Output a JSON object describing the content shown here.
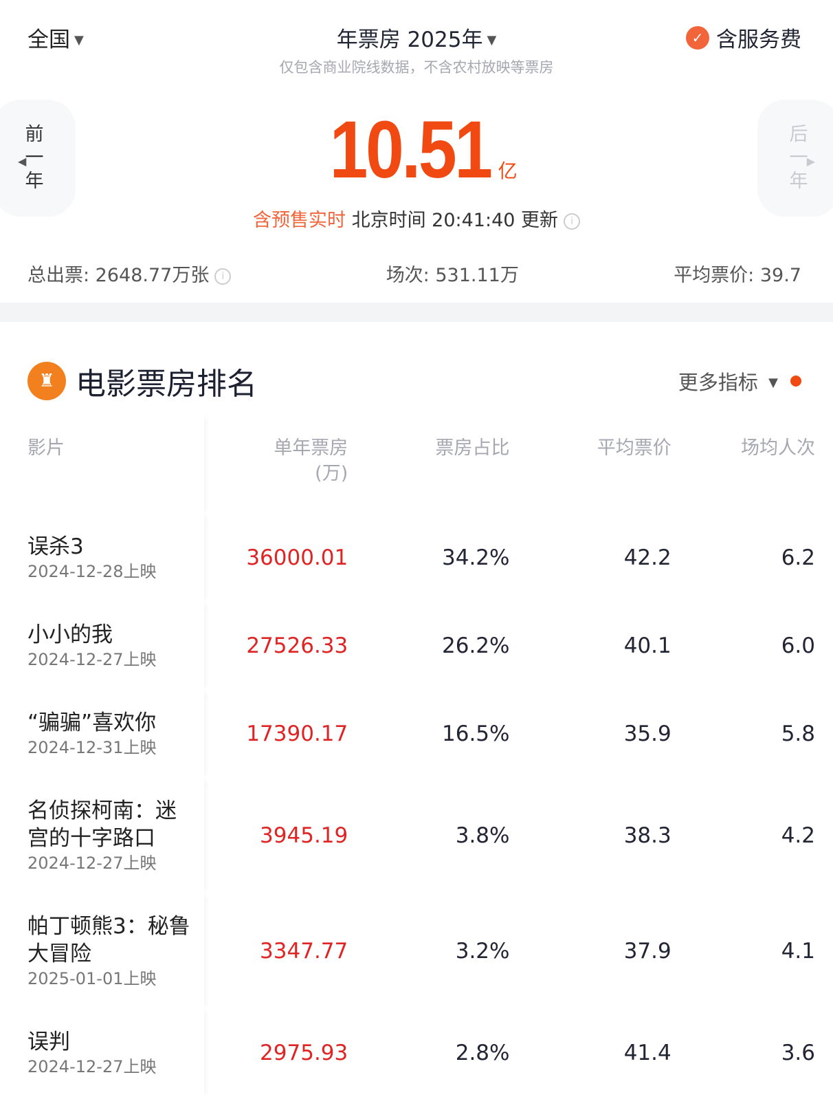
{
  "header": {
    "region": "全国",
    "title": "年票房 2025年",
    "subtitle": "仅包含商业院线数据，不含农村放映等票房",
    "service_fee": "含服务费"
  },
  "nav": {
    "prev": [
      "前",
      "一",
      "年"
    ],
    "next": [
      "后",
      "一",
      "年"
    ]
  },
  "summary": {
    "value": "10.51",
    "unit": "亿",
    "presale": "含预售实时",
    "update": "北京时间 20:41:40 更新"
  },
  "stats": {
    "tickets": "总出票: 2648.77万张",
    "shows": "场次: 531.11万",
    "avg_price": "平均票价: 39.7"
  },
  "section": {
    "title": "电影票房排名",
    "more": "更多指标"
  },
  "table": {
    "headers": [
      "影片",
      "单年票房",
      "(万)",
      "票房占比",
      "平均票价",
      "场均人次"
    ],
    "rows": [
      {
        "name": "误杀3",
        "date": "2024-12-28上映",
        "bo": "36000.01",
        "share": "34.2%",
        "price": "42.2",
        "avg": "6.2"
      },
      {
        "name": "小小的我",
        "date": "2024-12-27上映",
        "bo": "27526.33",
        "share": "26.2%",
        "price": "40.1",
        "avg": "6.0"
      },
      {
        "name": "“骗骗”喜欢你",
        "date": "2024-12-31上映",
        "bo": "17390.17",
        "share": "16.5%",
        "price": "35.9",
        "avg": "5.8"
      },
      {
        "name": "名侦探柯南：迷宫的十字路口",
        "date": "2024-12-27上映",
        "bo": "3945.19",
        "share": "3.8%",
        "price": "38.3",
        "avg": "4.2"
      },
      {
        "name": "帕丁顿熊3：秘鲁大冒险",
        "date": "2025-01-01上映",
        "bo": "3347.77",
        "share": "3.2%",
        "price": "37.9",
        "avg": "4.1"
      },
      {
        "name": "误判",
        "date": "2024-12-27上映",
        "bo": "2975.93",
        "share": "2.8%",
        "price": "41.4",
        "avg": "3.6"
      }
    ]
  }
}
